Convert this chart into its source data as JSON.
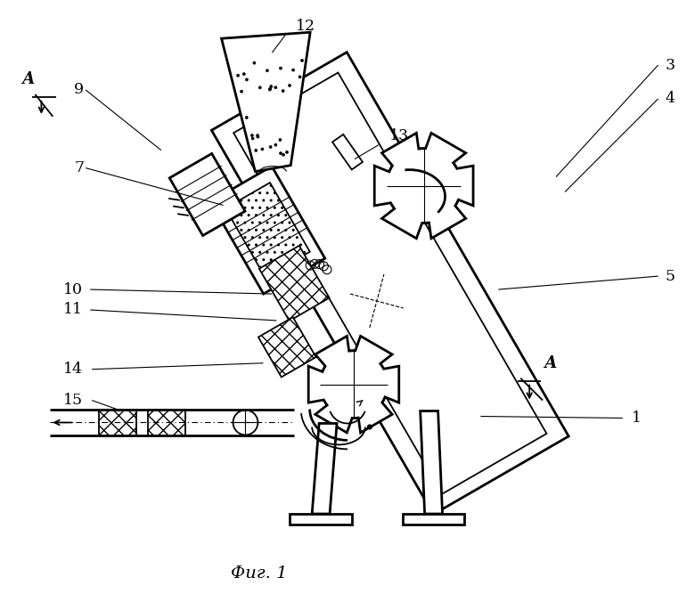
{
  "title": "Фиг. 1",
  "bg": "#ffffff",
  "black": "#000000",
  "lw_thick": 2.0,
  "lw_med": 1.3,
  "lw_thin": 0.8,
  "figsize": [
    7.8,
    6.85
  ],
  "dpi": 100
}
